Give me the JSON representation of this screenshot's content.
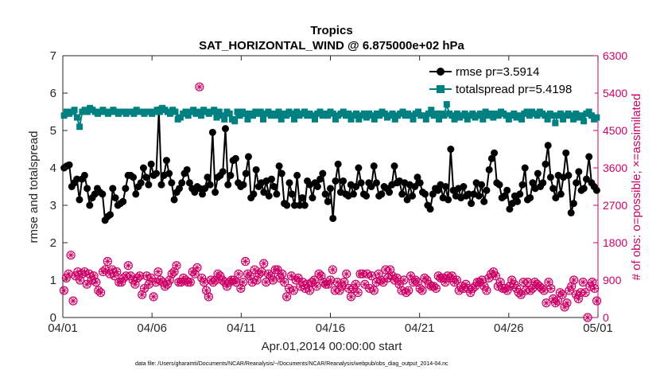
{
  "chart_data": {
    "type": "line",
    "title": "Tropics",
    "subtitle": "SAT_HORIZONTAL_WIND @ 6.875000e+02 hPa",
    "xlabel": "Apr.01,2014 00:00:00 start",
    "ylabel": "rmse and totalspread",
    "y2label": "# of obs: o=possible; ×=assimilated",
    "xlim": [
      0,
      30
    ],
    "ylim": [
      0,
      7
    ],
    "y2lim": [
      0,
      6300
    ],
    "xticks": [
      0,
      5,
      10,
      15,
      20,
      25,
      30
    ],
    "xtick_labels": [
      "04/01",
      "04/06",
      "04/11",
      "04/16",
      "04/21",
      "04/26",
      "05/01"
    ],
    "yticks": [
      0,
      1,
      2,
      3,
      4,
      5,
      6,
      7
    ],
    "ytick_labels": [
      "0",
      "1",
      "2",
      "3",
      "4",
      "5",
      "6",
      "7"
    ],
    "y2ticks": [
      0,
      900,
      1800,
      2700,
      3600,
      4500,
      5400,
      6300
    ],
    "y2tick_labels": [
      "0",
      "900",
      "1800",
      "2700",
      "3600",
      "4500",
      "5400",
      "6300"
    ],
    "legend_position": "top-right",
    "series": [
      {
        "name": "rmse pr=3.5914",
        "axis": "left",
        "color": "#000000",
        "marker": "circle",
        "values": [
          4.0,
          4.05,
          4.08,
          3.5,
          3.6,
          3.7,
          3.15,
          3.7,
          3.8,
          3.45,
          3.0,
          3.2,
          3.3,
          3.45,
          3.35,
          3.3,
          2.6,
          2.7,
          2.75,
          3.45,
          3.2,
          3.0,
          3.05,
          3.1,
          3.45,
          3.8,
          3.8,
          3.75,
          3.3,
          3.5,
          3.6,
          4.0,
          3.75,
          3.55,
          4.1,
          3.8,
          3.85,
          5.55,
          3.55,
          3.8,
          4.2,
          3.85,
          3.6,
          3.15,
          3.35,
          3.45,
          3.6,
          3.85,
          3.95,
          3.6,
          3.45,
          3.35,
          3.5,
          3.45,
          3.3,
          3.45,
          3.75,
          3.55,
          4.95,
          3.35,
          3.75,
          3.8,
          3.9,
          5.05,
          3.55,
          3.8,
          4.2,
          4.25,
          3.6,
          3.5,
          3.55,
          3.85,
          4.3,
          3.2,
          3.3,
          3.95,
          3.5,
          3.6,
          3.35,
          3.65,
          3.25,
          3.7,
          3.5,
          3.3,
          4.05,
          3.85,
          3.05,
          3.0,
          3.6,
          3.3,
          3.0,
          3.8,
          3.0,
          3.2,
          3.0,
          3.65,
          3.55,
          3.2,
          3.6,
          3.5,
          3.7,
          3.85,
          3.3,
          3.1,
          3.45,
          2.65,
          3.65,
          4.1,
          3.35,
          3.65,
          3.3,
          3.25,
          3.55,
          3.3,
          3.5,
          4.0,
          3.6,
          3.3,
          3.25,
          3.6,
          3.5,
          4.05,
          3.6,
          3.25,
          3.3,
          3.5,
          3.45,
          3.35,
          3.55,
          4.05,
          3.6,
          3.65,
          3.3,
          3.6,
          3.15,
          3.55,
          3.25,
          3.5,
          3.75,
          3.6,
          3.35,
          3.3,
          3.0,
          2.9,
          3.3,
          3.45,
          3.4,
          3.55,
          3.2,
          3.5,
          3.15,
          4.5,
          3.4,
          3.25,
          3.45,
          3.2,
          3.5,
          3.25,
          3.3,
          3.05,
          3.3,
          3.6,
          3.25,
          3.55,
          3.1,
          3.4,
          3.95,
          4.25,
          4.4,
          3.6,
          3.55,
          3.2,
          3.25,
          3.4,
          2.9,
          3.05,
          3.25,
          3.1,
          3.3,
          3.55,
          4.0,
          3.15,
          3.2,
          3.6,
          3.45,
          3.85,
          3.5,
          3.6,
          4.1,
          4.6,
          3.75,
          3.45,
          3.2,
          3.8,
          3.3,
          3.75,
          4.4,
          3.8,
          2.8,
          3.05,
          3.6,
          3.9,
          3.4,
          3.45,
          3.7,
          4.3,
          3.6,
          3.5,
          3.4
        ]
      },
      {
        "name": "totalspread pr=5.4198",
        "axis": "left",
        "color": "#008080",
        "marker": "square",
        "values": [
          5.4,
          5.5,
          5.45,
          5.5,
          5.55,
          5.35,
          5.1,
          5.5,
          5.55,
          5.5,
          5.6,
          5.55,
          5.5,
          5.45,
          5.5,
          5.55,
          5.5,
          5.45,
          5.5,
          5.55,
          5.5,
          5.45,
          5.5,
          5.5,
          5.45,
          5.5,
          5.5,
          5.45,
          5.55,
          5.5,
          5.5,
          5.45,
          5.5,
          5.5,
          5.45,
          5.5,
          5.55,
          5.5,
          5.6,
          5.55,
          5.5,
          5.45,
          5.55,
          5.5,
          5.3,
          5.35,
          5.45,
          5.5,
          5.4,
          5.5,
          5.55,
          5.45,
          5.5,
          5.4,
          5.55,
          5.5,
          5.45,
          5.5,
          5.55,
          5.35,
          5.5,
          5.4,
          5.3,
          5.5,
          5.45,
          5.3,
          5.25,
          5.5,
          5.4,
          5.5,
          5.45,
          5.3,
          5.45,
          5.4,
          5.5,
          5.45,
          5.5,
          5.3,
          5.45,
          5.5,
          5.4,
          5.45,
          5.4,
          5.5,
          5.3,
          5.45,
          5.4,
          5.5,
          5.45,
          5.3,
          5.5,
          5.4,
          5.45,
          5.5,
          5.4,
          5.45,
          5.4,
          5.3,
          5.45,
          5.5,
          5.4,
          5.45,
          5.4,
          5.5,
          5.45,
          5.3,
          5.4,
          5.45,
          5.5,
          5.4,
          5.45,
          5.3,
          5.4,
          5.45,
          5.3,
          5.4,
          5.45,
          5.35,
          5.45,
          5.4,
          5.3,
          5.45,
          5.4,
          5.5,
          5.45,
          5.35,
          5.4,
          5.45,
          5.3,
          5.4,
          5.45,
          5.5,
          5.4,
          5.45,
          5.4,
          5.3,
          5.45,
          5.5,
          5.4,
          5.4,
          5.3,
          5.45,
          5.55,
          5.4,
          5.45,
          5.3,
          5.45,
          5.4,
          5.7,
          5.45,
          5.4,
          5.3,
          5.45,
          5.35,
          5.4,
          5.45,
          5.3,
          5.4,
          5.45,
          5.35,
          5.4,
          5.45,
          5.3,
          5.5,
          5.4,
          5.45,
          5.35,
          5.45,
          5.4,
          5.5,
          5.45,
          5.4,
          5.3,
          5.4,
          5.45,
          5.35,
          5.4,
          5.3,
          5.45,
          5.5,
          5.4,
          5.5,
          5.45,
          5.4,
          5.5,
          5.45,
          5.4,
          5.3,
          5.45,
          5.4,
          5.2,
          5.4,
          5.45,
          5.3,
          5.4,
          5.45,
          5.4,
          5.3,
          5.45,
          5.35,
          5.4,
          5.25,
          5.45,
          5.5,
          5.4,
          5.3,
          5.35
        ]
      },
      {
        "name": "# of obs possible",
        "axis": "right",
        "color": "#cc0066",
        "marker": "o",
        "values": [
          650,
          950,
          1050,
          1500,
          400,
          1000,
          1100,
          900,
          1050,
          1100,
          800,
          1050,
          900,
          1000,
          850,
          650,
          600,
          1100,
          1150,
          1350,
          1050,
          1150,
          1000,
          1100,
          850,
          850,
          950,
          1000,
          1250,
          1000,
          900,
          800,
          950,
          1000,
          550,
          700,
          1000,
          800,
          950,
          500,
          850,
          1100,
          900,
          850,
          750,
          800,
          900,
          1050,
          1100,
          1250,
          850,
          850,
          950,
          900,
          850,
          850,
          1100,
          1050,
          1200,
          5550,
          950,
          850,
          650,
          500,
          900,
          850,
          900,
          1050,
          1000,
          900,
          850,
          750,
          850,
          900,
          900,
          850,
          1050,
          700,
          850,
          1350,
          1050,
          1000,
          850,
          1150,
          900,
          1050,
          1100,
          1300,
          850,
          1050,
          1000,
          900,
          1150,
          1150,
          950,
          1050,
          850,
          500,
          700,
          1000,
          650,
          900,
          950,
          750,
          850,
          700,
          800,
          650,
          850,
          900,
          750,
          1050,
          1000,
          850,
          800,
          800,
          900,
          1150,
          650,
          850,
          650,
          750,
          850,
          1050,
          700,
          500,
          700,
          800,
          600,
          1050,
          1050,
          800,
          1050,
          700,
          1000,
          650,
          850,
          1050,
          900,
          850,
          1150,
          950,
          1150,
          1000,
          900,
          950,
          800,
          650,
          900,
          600,
          650,
          1000,
          850,
          900,
          850,
          700,
          650,
          950,
          900,
          800,
          750,
          750,
          700,
          1000,
          950,
          950,
          850,
          1000,
          950,
          1000,
          850,
          900,
          650,
          750,
          700,
          800,
          700,
          600,
          700,
          750,
          850,
          850,
          900,
          750,
          650,
          950,
          1050,
          1100,
          1000,
          750,
          850,
          700,
          700,
          650,
          750,
          900,
          800,
          700,
          600,
          550,
          850,
          650,
          850,
          650,
          700,
          850,
          800,
          750,
          700,
          650,
          350,
          850,
          700,
          450,
          350,
          400,
          600,
          550,
          250,
          350,
          650,
          750,
          900,
          550,
          450,
          600,
          850,
          600,
          0,
          750,
          850,
          700,
          400
        ]
      },
      {
        "name": "# of obs assimilated",
        "axis": "right",
        "color": "#cc0066",
        "marker": "x",
        "values": []
      }
    ],
    "legend": [
      {
        "label": "rmse pr=3.5914",
        "marker": "circle",
        "color": "#000000"
      },
      {
        "label": "totalspread pr=5.4198",
        "marker": "square",
        "color": "#008080"
      }
    ]
  },
  "footer": "data file: /Users/gharamti/Documents/NCAR/Reanalysis/~/Documents/NCAR/Reanalysis/webpub/obs_diag_output_2014-04.nc"
}
